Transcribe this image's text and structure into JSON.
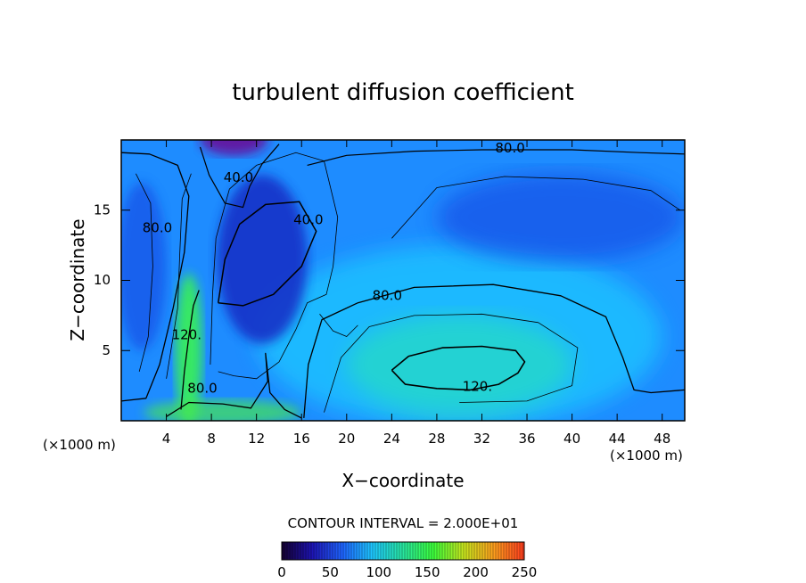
{
  "chart_data": {
    "type": "heatmap",
    "title": "turbulent diffusion coefficient",
    "xlabel": "X−coordinate",
    "ylabel": "Z−coordinate",
    "x_unit_left": "(×1000 m)",
    "x_unit_right": "(×1000 m)",
    "xlim": [
      0,
      50
    ],
    "ylim": [
      0,
      20
    ],
    "x_ticks": [
      4,
      8,
      12,
      16,
      20,
      24,
      28,
      32,
      36,
      40,
      44,
      48
    ],
    "y_ticks": [
      5,
      10,
      15
    ],
    "contour_interval_text": "CONTOUR INTERVAL = 2.000E+01",
    "contour_interval": 20,
    "contour_labels": [
      {
        "text": "80.0",
        "x": 34.5,
        "y": 19.4
      },
      {
        "text": "40.0",
        "x": 10.4,
        "y": 17.3
      },
      {
        "text": "40.0",
        "x": 16.6,
        "y": 14.3
      },
      {
        "text": "80.0",
        "x": 3.2,
        "y": 13.7
      },
      {
        "text": "80.0",
        "x": 23.6,
        "y": 8.9
      },
      {
        "text": "120.",
        "x": 5.8,
        "y": 6.1
      },
      {
        "text": "80.0",
        "x": 7.2,
        "y": 2.3
      },
      {
        "text": "120.",
        "x": 31.6,
        "y": 2.4
      }
    ],
    "colorbar": {
      "min": 0,
      "max": 250,
      "ticks": [
        0,
        50,
        100,
        150,
        200,
        250
      ],
      "colors": [
        "#140030",
        "#1e14b4",
        "#1e64ff",
        "#1ec8ff",
        "#28e6a0",
        "#3cff3c",
        "#c8e61e",
        "#ffa01e",
        "#ff3c1e"
      ]
    },
    "field_colors": {
      "bg_blue": "#1e8cff",
      "deep_blue": "#1432c8",
      "light_blue": "#1ec8ff",
      "green": "#3cff3c",
      "top_purple": "#6414a0"
    }
  }
}
